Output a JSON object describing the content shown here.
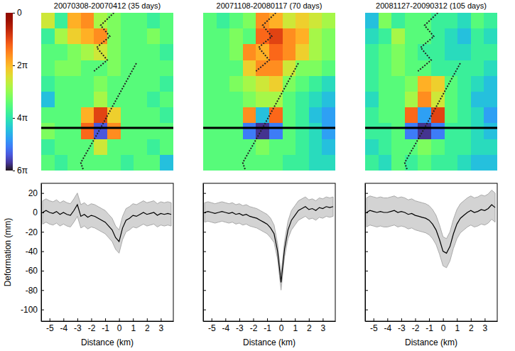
{
  "chart_data": [
    {
      "type": "heatmap",
      "title": "20070308-20070412 (35 days)",
      "color_range": [
        0,
        18.85
      ],
      "color_ticks": [
        0,
        {
          "value": 6.283,
          "label": "2π"
        },
        {
          "value": 12.566,
          "label": "4π"
        },
        {
          "value": 18.85,
          "label": "6π"
        }
      ],
      "cells": [
        [
          8,
          12,
          6,
          5,
          9,
          10,
          11,
          11,
          12,
          11
        ],
        [
          12,
          9,
          7,
          6,
          5,
          10,
          11,
          11,
          10,
          11
        ],
        [
          11,
          11,
          10,
          9,
          8,
          10,
          11,
          11,
          11,
          12
        ],
        [
          11,
          10,
          10,
          11,
          11,
          10,
          11,
          11,
          11,
          11
        ],
        [
          12,
          11,
          11,
          11,
          10,
          11,
          11,
          11,
          11,
          12
        ],
        [
          14,
          11,
          11,
          11,
          9,
          11,
          11,
          11,
          12,
          11
        ],
        [
          11,
          11,
          11,
          6,
          3,
          7,
          11,
          11,
          11,
          12
        ],
        [
          10,
          11,
          11,
          4,
          17,
          5,
          11,
          11,
          11,
          11
        ],
        [
          12,
          11,
          11,
          11,
          8,
          11,
          11,
          11,
          12,
          11
        ],
        [
          11,
          12,
          11,
          11,
          11,
          11,
          12,
          11,
          11,
          14
        ]
      ]
    },
    {
      "type": "heatmap",
      "title": "20071108-20080117 (70 days)",
      "cells": [
        [
          11,
          12,
          11,
          10,
          5,
          6,
          8,
          7,
          8,
          9
        ],
        [
          11,
          11,
          10,
          11,
          4,
          3,
          5,
          6,
          9,
          10
        ],
        [
          11,
          11,
          10,
          5,
          6,
          4,
          5,
          7,
          9,
          10
        ],
        [
          11,
          11,
          11,
          7,
          5,
          5,
          8,
          10,
          10,
          11
        ],
        [
          11,
          11,
          10,
          9,
          8,
          7,
          10,
          11,
          12,
          13
        ],
        [
          11,
          11,
          11,
          10,
          9,
          9,
          11,
          12,
          13,
          14
        ],
        [
          11,
          11,
          11,
          5,
          14,
          4,
          11,
          12,
          14,
          15
        ],
        [
          11,
          11,
          11,
          16,
          18,
          16,
          11,
          12,
          13,
          15
        ],
        [
          11,
          11,
          11,
          11,
          10,
          11,
          11,
          12,
          13,
          14
        ],
        [
          11,
          11,
          11,
          11,
          11,
          11,
          12,
          12,
          13,
          13
        ]
      ]
    },
    {
      "type": "heatmap",
      "title": "20081127-20090312 (105 days)",
      "cells": [
        [
          14,
          10,
          12,
          11,
          11,
          12,
          12,
          13,
          11,
          12
        ],
        [
          13,
          12,
          9,
          11,
          11,
          12,
          13,
          14,
          12,
          13
        ],
        [
          12,
          11,
          10,
          11,
          12,
          12,
          13,
          13,
          12,
          12
        ],
        [
          12,
          11,
          10,
          11,
          11,
          12,
          12,
          12,
          12,
          13
        ],
        [
          12,
          11,
          11,
          10,
          6,
          7,
          11,
          12,
          13,
          14
        ],
        [
          13,
          11,
          11,
          9,
          5,
          8,
          11,
          12,
          14,
          14
        ],
        [
          12,
          11,
          11,
          4,
          15,
          3,
          11,
          12,
          13,
          15
        ],
        [
          12,
          12,
          11,
          16,
          18,
          16,
          12,
          12,
          13,
          14
        ],
        [
          13,
          12,
          11,
          11,
          10,
          11,
          12,
          12,
          13,
          13
        ],
        [
          12,
          13,
          11,
          12,
          11,
          12,
          12,
          13,
          14,
          14
        ]
      ]
    },
    {
      "type": "line",
      "color": "#000000",
      "xlabel": "Distance (km)",
      "ylabel": "Deformation (mm)",
      "xlim": [
        -5.6,
        3.9
      ],
      "ylim": [
        -112,
        30
      ],
      "xticks": [
        -5,
        -4,
        -3,
        -2,
        -1,
        0,
        1,
        2,
        3
      ],
      "yticks": [
        20,
        0,
        -20,
        -40,
        -60,
        -80,
        -100
      ],
      "x": [
        -5.5,
        -5.25,
        -5,
        -4.75,
        -4.5,
        -4.25,
        -4,
        -3.75,
        -3.5,
        -3.25,
        -3,
        -2.75,
        -2.5,
        -2.25,
        -2,
        -1.75,
        -1.5,
        -1.25,
        -1,
        -0.75,
        -0.5,
        -0.25,
        0,
        0.25,
        0.5,
        0.75,
        1,
        1.25,
        1.5,
        1.75,
        2,
        2.25,
        2.5,
        2.75,
        3,
        3.25,
        3.5,
        3.75
      ],
      "values": [
        0,
        2,
        0,
        -1,
        1,
        -2,
        0,
        -2,
        -3,
        2,
        8,
        -4,
        -2,
        -5,
        -3,
        -4,
        -6,
        -8,
        -10,
        -14,
        -18,
        -26,
        -30,
        -16,
        -8,
        -6,
        -3,
        -4,
        -2,
        0,
        -2,
        -1,
        0,
        -3,
        -1,
        -2,
        -1,
        -2
      ],
      "error": [
        12,
        12,
        12,
        12,
        12,
        12,
        12,
        12,
        12,
        12,
        12,
        12,
        12,
        12,
        12,
        12,
        12,
        12,
        12,
        12,
        12,
        12,
        12,
        12,
        12,
        12,
        12,
        12,
        12,
        12,
        12,
        12,
        12,
        12,
        12,
        12,
        12,
        12
      ]
    },
    {
      "type": "line",
      "color": "#000000",
      "xlabel": "Distance (km)",
      "tick_labels": "x",
      "xlim": [
        -5.6,
        3.9
      ],
      "ylim": [
        -112,
        30
      ],
      "xticks": [
        -5,
        -4,
        -3,
        -2,
        -1,
        0,
        1,
        2,
        3
      ],
      "yticks": [
        20,
        0,
        -20,
        -40,
        -60,
        -80,
        -100
      ],
      "x": [
        -5.5,
        -5.25,
        -5,
        -4.75,
        -4.5,
        -4.25,
        -4,
        -3.75,
        -3.5,
        -3.25,
        -3,
        -2.75,
        -2.5,
        -2.25,
        -2,
        -1.75,
        -1.5,
        -1.25,
        -1,
        -0.75,
        -0.5,
        -0.25,
        0,
        0.25,
        0.5,
        0.75,
        1,
        1.25,
        1.5,
        1.75,
        2,
        2.25,
        2.5,
        2.75,
        3,
        3.25,
        3.5,
        3.75
      ],
      "values": [
        0,
        1,
        0,
        -1,
        0,
        1,
        0,
        -1,
        0,
        -2,
        -1,
        -3,
        -2,
        -4,
        -5,
        -6,
        -8,
        -10,
        -12,
        -16,
        -22,
        -40,
        -72,
        -38,
        -18,
        -8,
        -3,
        2,
        4,
        6,
        3,
        4,
        2,
        5,
        4,
        6,
        5,
        6
      ],
      "error": [
        10,
        10,
        10,
        10,
        10,
        10,
        10,
        10,
        10,
        10,
        10,
        10,
        10,
        10,
        10,
        10,
        10,
        10,
        10,
        10,
        9,
        8,
        8,
        8,
        9,
        10,
        10,
        10,
        10,
        10,
        10,
        10,
        10,
        10,
        10,
        10,
        10,
        10
      ]
    },
    {
      "type": "line",
      "color": "#000000",
      "xlabel": "Distance (km)",
      "tick_labels": "x",
      "xlim": [
        -5.6,
        3.9
      ],
      "ylim": [
        -112,
        30
      ],
      "xticks": [
        -5,
        -4,
        -3,
        -2,
        -1,
        0,
        1,
        2,
        3
      ],
      "yticks": [
        20,
        0,
        -20,
        -40,
        -60,
        -80,
        -100
      ],
      "x": [
        -5.5,
        -5.25,
        -5,
        -4.75,
        -4.5,
        -4.25,
        -4,
        -3.75,
        -3.5,
        -3.25,
        -3,
        -2.75,
        -2.5,
        -2.25,
        -2,
        -1.75,
        -1.5,
        -1.25,
        -1,
        -0.75,
        -0.5,
        -0.25,
        0,
        0.25,
        0.5,
        0.75,
        1,
        1.25,
        1.5,
        1.75,
        2,
        2.25,
        2.5,
        2.75,
        3,
        3.25,
        3.5,
        3.75
      ],
      "values": [
        0,
        2,
        1,
        0,
        1,
        0,
        0,
        1,
        2,
        0,
        1,
        0,
        -2,
        -1,
        -3,
        -4,
        -5,
        -6,
        -8,
        -12,
        -18,
        -28,
        -40,
        -42,
        -35,
        -22,
        -12,
        -6,
        -3,
        0,
        2,
        0,
        1,
        3,
        2,
        4,
        8,
        5
      ],
      "error": [
        15,
        15,
        15,
        15,
        15,
        15,
        15,
        15,
        15,
        15,
        15,
        15,
        15,
        15,
        15,
        15,
        15,
        15,
        15,
        15,
        15,
        15,
        15,
        15,
        15,
        15,
        15,
        15,
        15,
        15,
        15,
        15,
        15,
        15,
        15,
        15,
        15,
        15
      ]
    }
  ]
}
